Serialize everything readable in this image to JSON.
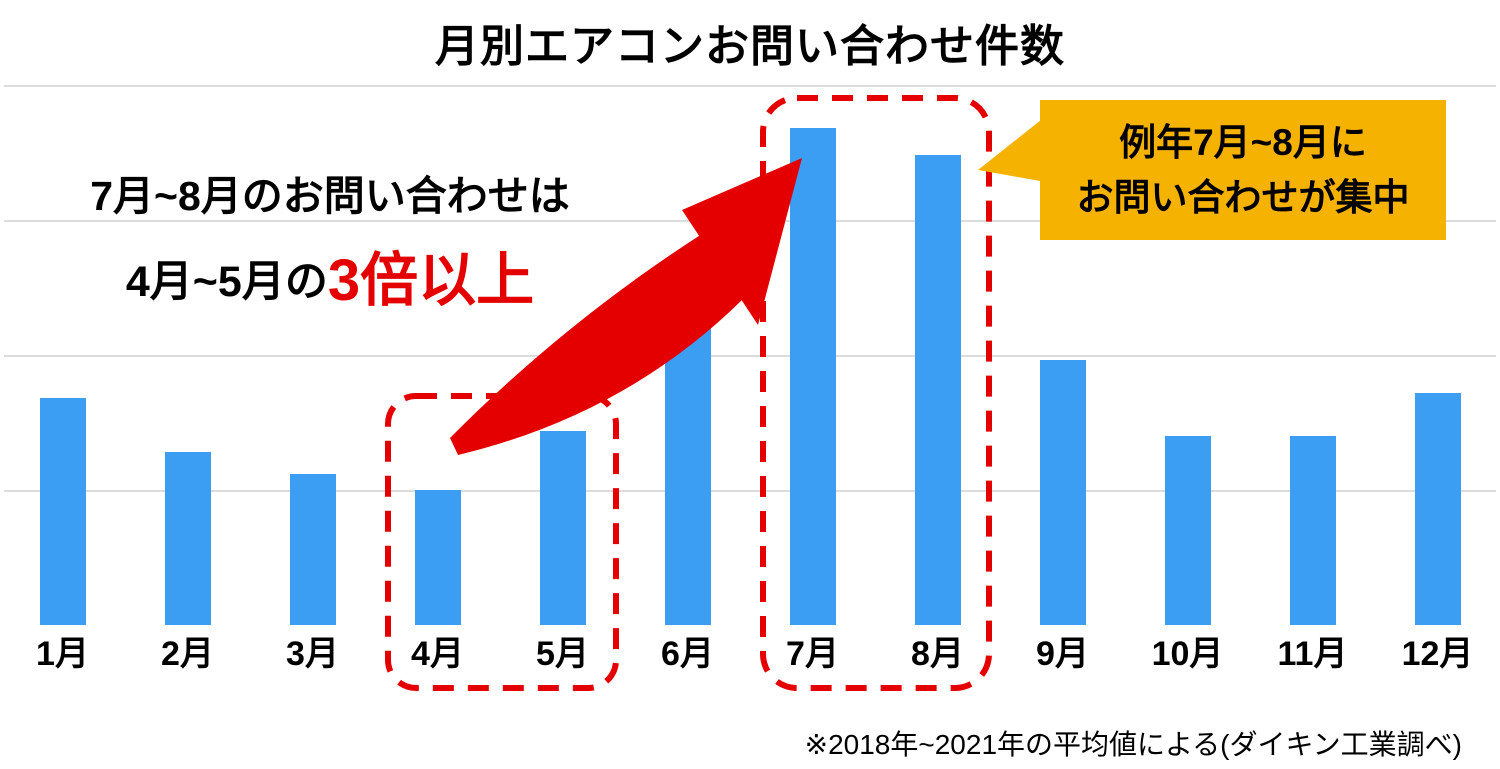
{
  "chart_data": {
    "type": "bar",
    "title": "月別エアコンお問い合わせ件数",
    "categories": [
      "1月",
      "2月",
      "3月",
      "4月",
      "5月",
      "6月",
      "7月",
      "8月",
      "9月",
      "10月",
      "11月",
      "12月"
    ],
    "values": [
      42,
      32,
      28,
      25,
      36,
      55,
      92,
      87,
      49,
      35,
      35,
      43
    ],
    "xlabel": "",
    "ylabel": "",
    "ylim": [
      0,
      100
    ],
    "grid": true,
    "gridline_values": [
      25,
      50,
      75,
      100
    ],
    "legend": false,
    "bar_color": "#3B9EF3"
  },
  "annotation": {
    "line1": "7月~8月のお問い合わせは",
    "line2_prefix": "4月~5月の",
    "line2_highlight": "3倍以上"
  },
  "callout": {
    "line1": "例年7月~8月に",
    "line2": "お問い合わせが集中"
  },
  "footnote": {
    "text": "※2018年~2021年の平均値による(ダイキン工業調べ)"
  },
  "colors": {
    "bar_blue": "#3B9EF3",
    "accent_red": "#E50000",
    "callout_yellow": "#F6B200",
    "gridline": "#DCDCDC",
    "text": "#000000"
  }
}
